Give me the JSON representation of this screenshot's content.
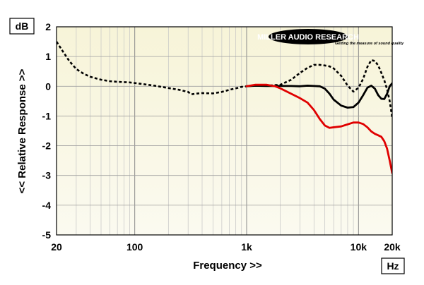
{
  "chart_data": {
    "type": "line",
    "xlabel": "Frequency >>",
    "ylabel": "<< Relative Response >>",
    "x_unit": "Hz",
    "y_unit": "dB",
    "x_scale": "log",
    "xlim": [
      20,
      20000
    ],
    "ylim": [
      -5,
      2
    ],
    "x_ticks": [
      20,
      100,
      1000,
      10000,
      20000
    ],
    "x_tick_labels": [
      "20",
      "100",
      "1k",
      "10k",
      "20k"
    ],
    "y_ticks": [
      2,
      1,
      0,
      -1,
      -2,
      -3,
      -4,
      -5
    ],
    "y_tick_labels": [
      "2",
      "1",
      "0",
      "-1",
      "-2",
      "-3",
      "-4",
      "-5"
    ],
    "grid": true,
    "background_color": "#f6f3dc",
    "logo": {
      "name": "MILLER AUDIO RESEARCH",
      "tagline": "Getting the measure of sound quality"
    },
    "series": [
      {
        "style": "dotted",
        "color": "#000000",
        "x": [
          20,
          23,
          26,
          30,
          35,
          40,
          50,
          60,
          70,
          80,
          90,
          100,
          120,
          150,
          200,
          250,
          300,
          320,
          350,
          400,
          500,
          600,
          700,
          800,
          900,
          1000,
          1200,
          1500,
          2000,
          2500,
          3000,
          3500,
          4000,
          4500,
          5000,
          5500,
          6000,
          7000,
          8000,
          9000,
          10000,
          11000,
          12000,
          13000,
          14000,
          15000,
          16000,
          17000,
          18000,
          19000,
          20000
        ],
        "y": [
          1.5,
          1.15,
          0.85,
          0.58,
          0.42,
          0.32,
          0.22,
          0.17,
          0.15,
          0.14,
          0.13,
          0.11,
          0.07,
          0.02,
          -0.06,
          -0.12,
          -0.19,
          -0.27,
          -0.25,
          -0.23,
          -0.24,
          -0.19,
          -0.12,
          -0.07,
          -0.02,
          0.0,
          0.03,
          0.02,
          0.05,
          0.22,
          0.45,
          0.62,
          0.72,
          0.72,
          0.7,
          0.67,
          0.6,
          0.35,
          0.02,
          -0.18,
          -0.05,
          0.25,
          0.65,
          0.88,
          0.85,
          0.7,
          0.45,
          0.2,
          -0.1,
          -0.5,
          -1.05
        ]
      },
      {
        "style": "solid",
        "color": "#000000",
        "x": [
          1000,
          1200,
          1500,
          2000,
          2500,
          3000,
          3500,
          4000,
          4500,
          5000,
          5500,
          6000,
          7000,
          8000,
          9000,
          10000,
          11000,
          12000,
          13000,
          14000,
          15000,
          16000,
          17000,
          18000,
          19000,
          20000
        ],
        "y": [
          0.0,
          0.02,
          0.01,
          0.01,
          0.01,
          0.0,
          0.02,
          0.01,
          0.0,
          -0.08,
          -0.25,
          -0.45,
          -0.65,
          -0.72,
          -0.7,
          -0.55,
          -0.3,
          -0.05,
          0.02,
          -0.08,
          -0.3,
          -0.42,
          -0.43,
          -0.25,
          0.0,
          0.1
        ]
      },
      {
        "style": "solid",
        "color": "#e00000",
        "x": [
          1000,
          1200,
          1500,
          1800,
          2000,
          2500,
          3000,
          3500,
          4000,
          4500,
          5000,
          5500,
          6000,
          7000,
          8000,
          9000,
          10000,
          11000,
          12000,
          13000,
          14000,
          15000,
          16000,
          17000,
          18000,
          19000,
          20000
        ],
        "y": [
          0.0,
          0.05,
          0.05,
          0.0,
          -0.07,
          -0.25,
          -0.4,
          -0.55,
          -0.8,
          -1.1,
          -1.32,
          -1.4,
          -1.38,
          -1.35,
          -1.28,
          -1.22,
          -1.22,
          -1.27,
          -1.38,
          -1.52,
          -1.6,
          -1.65,
          -1.7,
          -1.85,
          -2.1,
          -2.5,
          -2.92
        ]
      }
    ]
  }
}
